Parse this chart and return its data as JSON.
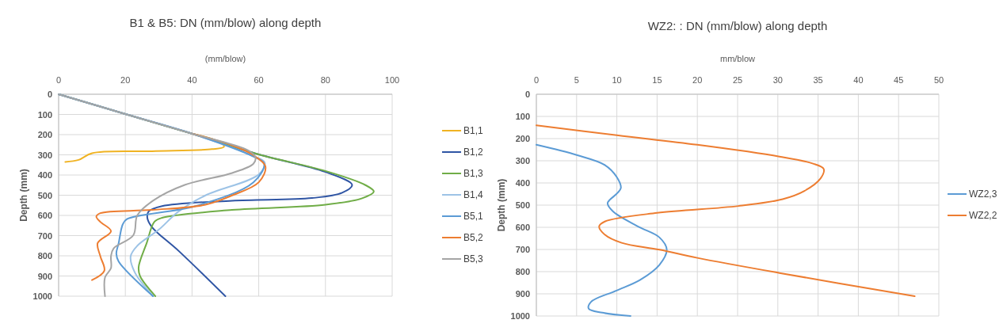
{
  "chart_data": [
    {
      "type": "line",
      "title": "B1 & B5: DN (mm/blow) along depth",
      "xlabel": "(mm/blow)",
      "ylabel": "Depth (mm)",
      "xlim": [
        0,
        100
      ],
      "xticks": [
        0,
        20,
        40,
        60,
        80,
        100
      ],
      "ylim": [
        1000,
        0
      ],
      "yticks": [
        0,
        100,
        200,
        300,
        400,
        500,
        600,
        700,
        800,
        900,
        1000
      ],
      "grid": true,
      "legend": "right",
      "series": [
        {
          "name": "B1,1",
          "color": "#f0b323",
          "x": [
            40,
            48,
            49.6,
            46,
            28,
            10,
            6,
            2
          ],
          "values": [
            195,
            235,
            260,
            272,
            282,
            292,
            325,
            335
          ]
        },
        {
          "name": "B1,2",
          "color": "#2f55a4",
          "x": [
            0,
            20,
            40,
            60,
            80,
            88,
            85,
            76,
            52,
            31,
            27,
            26.6,
            28,
            36,
            50
          ],
          "values": [
            0,
            98,
            195,
            298,
            385,
            449,
            488,
            514,
            527,
            554,
            580,
            612,
            658,
            776,
            1000
          ]
        },
        {
          "name": "B1,3",
          "color": "#70ad47",
          "x": [
            0,
            20,
            40,
            60,
            80,
            92,
            94.5,
            91,
            80,
            52,
            31,
            28.7,
            26.4,
            24,
            24.4,
            29
          ],
          "values": [
            0,
            98,
            195,
            298,
            380,
            450,
            482,
            515,
            547,
            573,
            612,
            632,
            737,
            855,
            900,
            1000
          ]
        },
        {
          "name": "B1,4",
          "color": "#9dc3e6",
          "x": [
            0,
            20,
            40,
            58,
            61.8,
            60,
            44,
            36,
            30,
            23.6,
            21.6,
            22.8,
            28.3
          ],
          "values": [
            0,
            98,
            195,
            305,
            338,
            397,
            501,
            580,
            671,
            750,
            802,
            881,
            1000
          ]
        },
        {
          "name": "B5,1",
          "color": "#5b9bd5",
          "x": [
            0,
            20,
            40,
            58,
            61.6,
            58.4,
            41,
            20.4,
            19.2,
            18,
            17.3,
            18,
            28.3
          ],
          "values": [
            0,
            98,
            195,
            305,
            344,
            436,
            554,
            619,
            645,
            737,
            789,
            828,
            1000
          ]
        },
        {
          "name": "B5,2",
          "color": "#ed7d31",
          "x": [
            40,
            52,
            58,
            62,
            60,
            52,
            44,
            28,
            12.5,
            11.3,
            12.5,
            15.7,
            11.7,
            12.5,
            13.7,
            10
          ],
          "values": [
            195,
            253,
            298,
            357,
            436,
            501,
            547,
            573,
            589,
            606,
            632,
            678,
            737,
            802,
            874,
            920
          ]
        },
        {
          "name": "B5,3",
          "color": "#a5a5a5",
          "x": [
            0,
            20,
            40,
            56.8,
            59,
            58.4,
            52,
            37.8,
            28.3,
            23.6,
            22.4,
            16.5,
            15.7,
            15.7,
            13.9,
            13.9
          ],
          "values": [
            0,
            98,
            195,
            278,
            312,
            344,
            390,
            449,
            527,
            599,
            698,
            763,
            802,
            861,
            907,
            1000
          ]
        }
      ]
    },
    {
      "type": "line",
      "title": "WZ2: : DN (mm/blow) along depth",
      "xlabel": "mm/blow",
      "ylabel": "Depth (mm)",
      "xlim": [
        0,
        50
      ],
      "xticks": [
        0,
        5,
        10,
        15,
        20,
        25,
        30,
        35,
        40,
        45,
        50
      ],
      "ylim": [
        1000,
        0
      ],
      "yticks": [
        0,
        100,
        200,
        300,
        400,
        500,
        600,
        700,
        800,
        900,
        1000
      ],
      "grid": true,
      "legend": "right",
      "series": [
        {
          "name": "WZ2,3",
          "color": "#5b9bd5",
          "x": [
            0,
            5.1,
            8.5,
            10,
            10.5,
            10,
            8.85,
            9.5,
            12.6,
            15.3,
            16.2,
            15.3,
            12.9,
            9.9,
            6.8,
            6.5,
            8.2,
            11.7
          ],
          "values": [
            228,
            275,
            319,
            374,
            423,
            448,
            491,
            528,
            596,
            646,
            701,
            769,
            837,
            886,
            936,
            967,
            985,
            1000
          ]
        },
        {
          "name": "WZ2,2",
          "color": "#ed7d31",
          "x": [
            0,
            10,
            20,
            30.2,
            34.3,
            35.7,
            35.3,
            33.3,
            30.6,
            25.1,
            15,
            8.5,
            7.8,
            8.5,
            10.6,
            15.3,
            20,
            30.2,
            47
          ],
          "values": [
            140,
            185,
            228,
            281,
            312,
            337,
            380,
            436,
            473,
            504,
            535,
            574,
            596,
            633,
            670,
            701,
            738,
            806,
            911
          ]
        }
      ]
    }
  ]
}
